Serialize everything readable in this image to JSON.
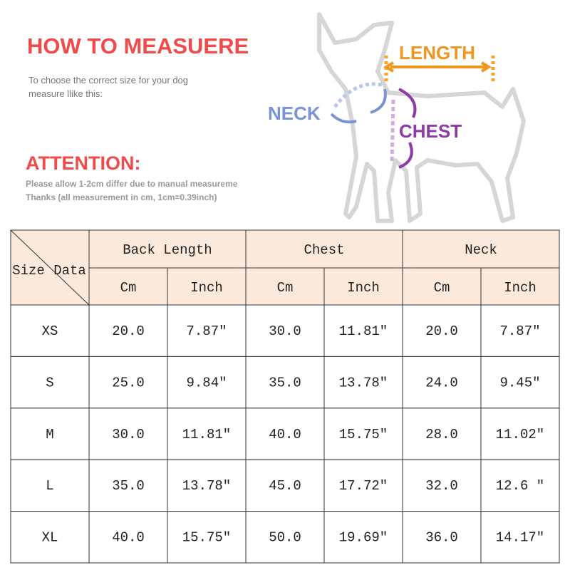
{
  "header": {
    "title": "HOW TO MEASUERE",
    "subtitle": [
      "To choose the correct size for your dog",
      "measure llike this:"
    ]
  },
  "attention": {
    "title": "ATTENTION:",
    "notes": [
      "Please allow 1-2cm differ due to manual measureme",
      "Thanks (all measurement in cm, 1cm=0.39inch)"
    ]
  },
  "diagram": {
    "length": "LENGTH",
    "neck": "NECK",
    "chest": "CHEST"
  },
  "table": {
    "corner": [
      "Size",
      "Data"
    ],
    "groups": [
      "Back Length",
      "Chest",
      "Neck"
    ],
    "subheaders": [
      "Cm",
      "Inch",
      "Cm",
      "Inch",
      "Cm",
      "Inch"
    ],
    "rows": [
      [
        "XS",
        "20.0",
        "7.87″",
        "30.0",
        "11.81″",
        "20.0",
        "7.87″"
      ],
      [
        "S",
        "25.0",
        "9.84″",
        "35.0",
        "13.78″",
        "24.0",
        "9.45″"
      ],
      [
        "M",
        "30.0",
        "11.81″",
        "40.0",
        "15.75″",
        "28.0",
        "11.02″"
      ],
      [
        "L",
        "35.0",
        "13.78″",
        "45.0",
        "17.72″",
        "32.0",
        "12.6 ″"
      ],
      [
        "XL",
        "40.0",
        "15.75″",
        "50.0",
        "19.69″",
        "36.0",
        "14.17″"
      ]
    ]
  }
}
